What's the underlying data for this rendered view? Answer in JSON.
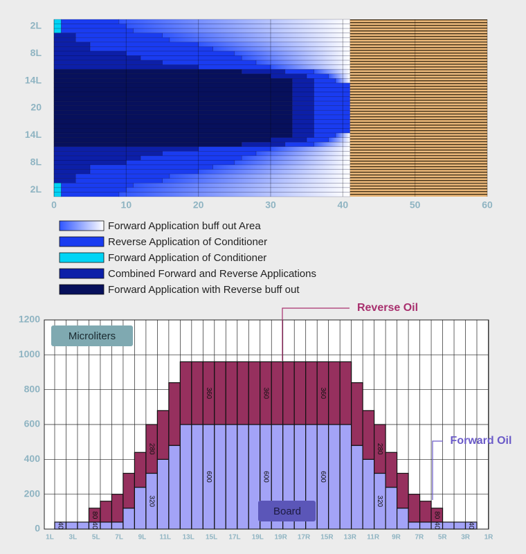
{
  "chart_data": [
    {
      "type": "hbar",
      "categories": [
        null,
        "2L",
        null,
        null,
        null,
        null,
        null,
        "8L",
        null,
        null,
        null,
        null,
        null,
        "14L",
        null,
        null,
        null,
        null,
        null,
        "20",
        null,
        null,
        null,
        null,
        null,
        "14L",
        null,
        null,
        null,
        null,
        null,
        "8L",
        null,
        null,
        null,
        null,
        null,
        "2L",
        null
      ],
      "series": [
        {
          "name": "Forward Application buff out Area",
          "color": "#2f55ff",
          "gradient_to": "#ffffff",
          "values": [
            32,
            31,
            30,
            26,
            25,
            21,
            19,
            16,
            15,
            13,
            11,
            5,
            3,
            2,
            0,
            0,
            0,
            0,
            0,
            0,
            0,
            0,
            0,
            0,
            0,
            2,
            3,
            5,
            11,
            13,
            15,
            16,
            19,
            21,
            25,
            26,
            30,
            31,
            32
          ]
        },
        {
          "name": "Reverse Application of Conditioner",
          "color": "#1a3cf0",
          "values": [
            8,
            9,
            10,
            12,
            13,
            15,
            17,
            15,
            14,
            13,
            10,
            4,
            3,
            3,
            5,
            5,
            5,
            5,
            5,
            5,
            5,
            5,
            5,
            5,
            5,
            3,
            3,
            4,
            10,
            13,
            14,
            15,
            17,
            15,
            13,
            12,
            10,
            9,
            8
          ]
        },
        {
          "name": "Forward Application of Conditioner",
          "color": "#00d4f5",
          "values": [
            1,
            1,
            1,
            0,
            0,
            0,
            0,
            0,
            0,
            0,
            0,
            0,
            0,
            0,
            0,
            0,
            0,
            0,
            0,
            0,
            0,
            0,
            0,
            0,
            0,
            0,
            0,
            0,
            0,
            0,
            0,
            0,
            0,
            0,
            0,
            0,
            1,
            1,
            1
          ]
        },
        {
          "name": "Combined Forward and Reverse Applications",
          "color": "#0c1fa8",
          "values": [
            0,
            0,
            0,
            3,
            3,
            5,
            5,
            10,
            12,
            15,
            20,
            6,
            5,
            3,
            3,
            3,
            3,
            3,
            3,
            3,
            3,
            3,
            3,
            3,
            3,
            3,
            5,
            6,
            20,
            15,
            12,
            10,
            5,
            5,
            3,
            3,
            0,
            0,
            0
          ]
        },
        {
          "name": "Forward Application with Reverse buff out",
          "color": "#07105c",
          "values": [
            0,
            0,
            0,
            0,
            0,
            0,
            0,
            0,
            0,
            0,
            0,
            26,
            30,
            33,
            33,
            33,
            33,
            33,
            33,
            33,
            33,
            33,
            33,
            33,
            33,
            33,
            30,
            26,
            0,
            0,
            0,
            0,
            0,
            0,
            0,
            0,
            0,
            0,
            0
          ]
        }
      ],
      "xlim": [
        0,
        60
      ],
      "xticks": [
        0,
        10,
        20,
        30,
        40,
        50,
        60
      ],
      "grid": true
    },
    {
      "type": "bar",
      "x_tick_labels": [
        "1L",
        "3L",
        "5L",
        "7L",
        "9L",
        "11L",
        "13L",
        "15L",
        "17L",
        "19L",
        "19R",
        "17R",
        "15R",
        "13R",
        "11R",
        "9R",
        "7R",
        "5R",
        "3R",
        "1R"
      ],
      "series": [
        {
          "name": "Forward Oil",
          "color": "#a3a3f7",
          "label_color": "#6a5ac8",
          "values": [
            40,
            40,
            40,
            40,
            40,
            40,
            120,
            240,
            320,
            400,
            480,
            600,
            600,
            600,
            600,
            600,
            600,
            600,
            600,
            600,
            600,
            600,
            600,
            600,
            600,
            600,
            480,
            400,
            320,
            240,
            120,
            40,
            40,
            40,
            40,
            40,
            40
          ],
          "value_labels": [
            "40",
            null,
            null,
            "40",
            null,
            null,
            null,
            null,
            "320",
            null,
            null,
            null,
            null,
            "600",
            null,
            null,
            null,
            null,
            "600",
            null,
            null,
            null,
            null,
            "600",
            null,
            null,
            null,
            null,
            "320",
            null,
            null,
            null,
            null,
            "40",
            null,
            null,
            "40"
          ]
        },
        {
          "name": "Reverse Oil",
          "color": "#96305e",
          "label_color": "#a8306e",
          "values": [
            0,
            0,
            0,
            80,
            120,
            160,
            200,
            200,
            280,
            280,
            360,
            360,
            360,
            360,
            360,
            360,
            360,
            360,
            360,
            360,
            360,
            360,
            360,
            360,
            360,
            360,
            360,
            280,
            280,
            200,
            200,
            160,
            120,
            80,
            0,
            0,
            0
          ],
          "value_labels": [
            null,
            null,
            null,
            "80",
            null,
            null,
            null,
            null,
            "280",
            null,
            null,
            null,
            null,
            "360",
            null,
            null,
            null,
            null,
            "360",
            null,
            null,
            null,
            null,
            "360",
            null,
            null,
            null,
            null,
            "280",
            null,
            null,
            null,
            null,
            "80",
            null,
            null,
            null
          ]
        }
      ],
      "annotations": [
        "Microliters",
        "Board"
      ],
      "ylim": [
        0,
        1200
      ],
      "yticks": [
        0,
        200,
        400,
        600,
        800,
        1000,
        1200
      ],
      "grid": true
    }
  ]
}
